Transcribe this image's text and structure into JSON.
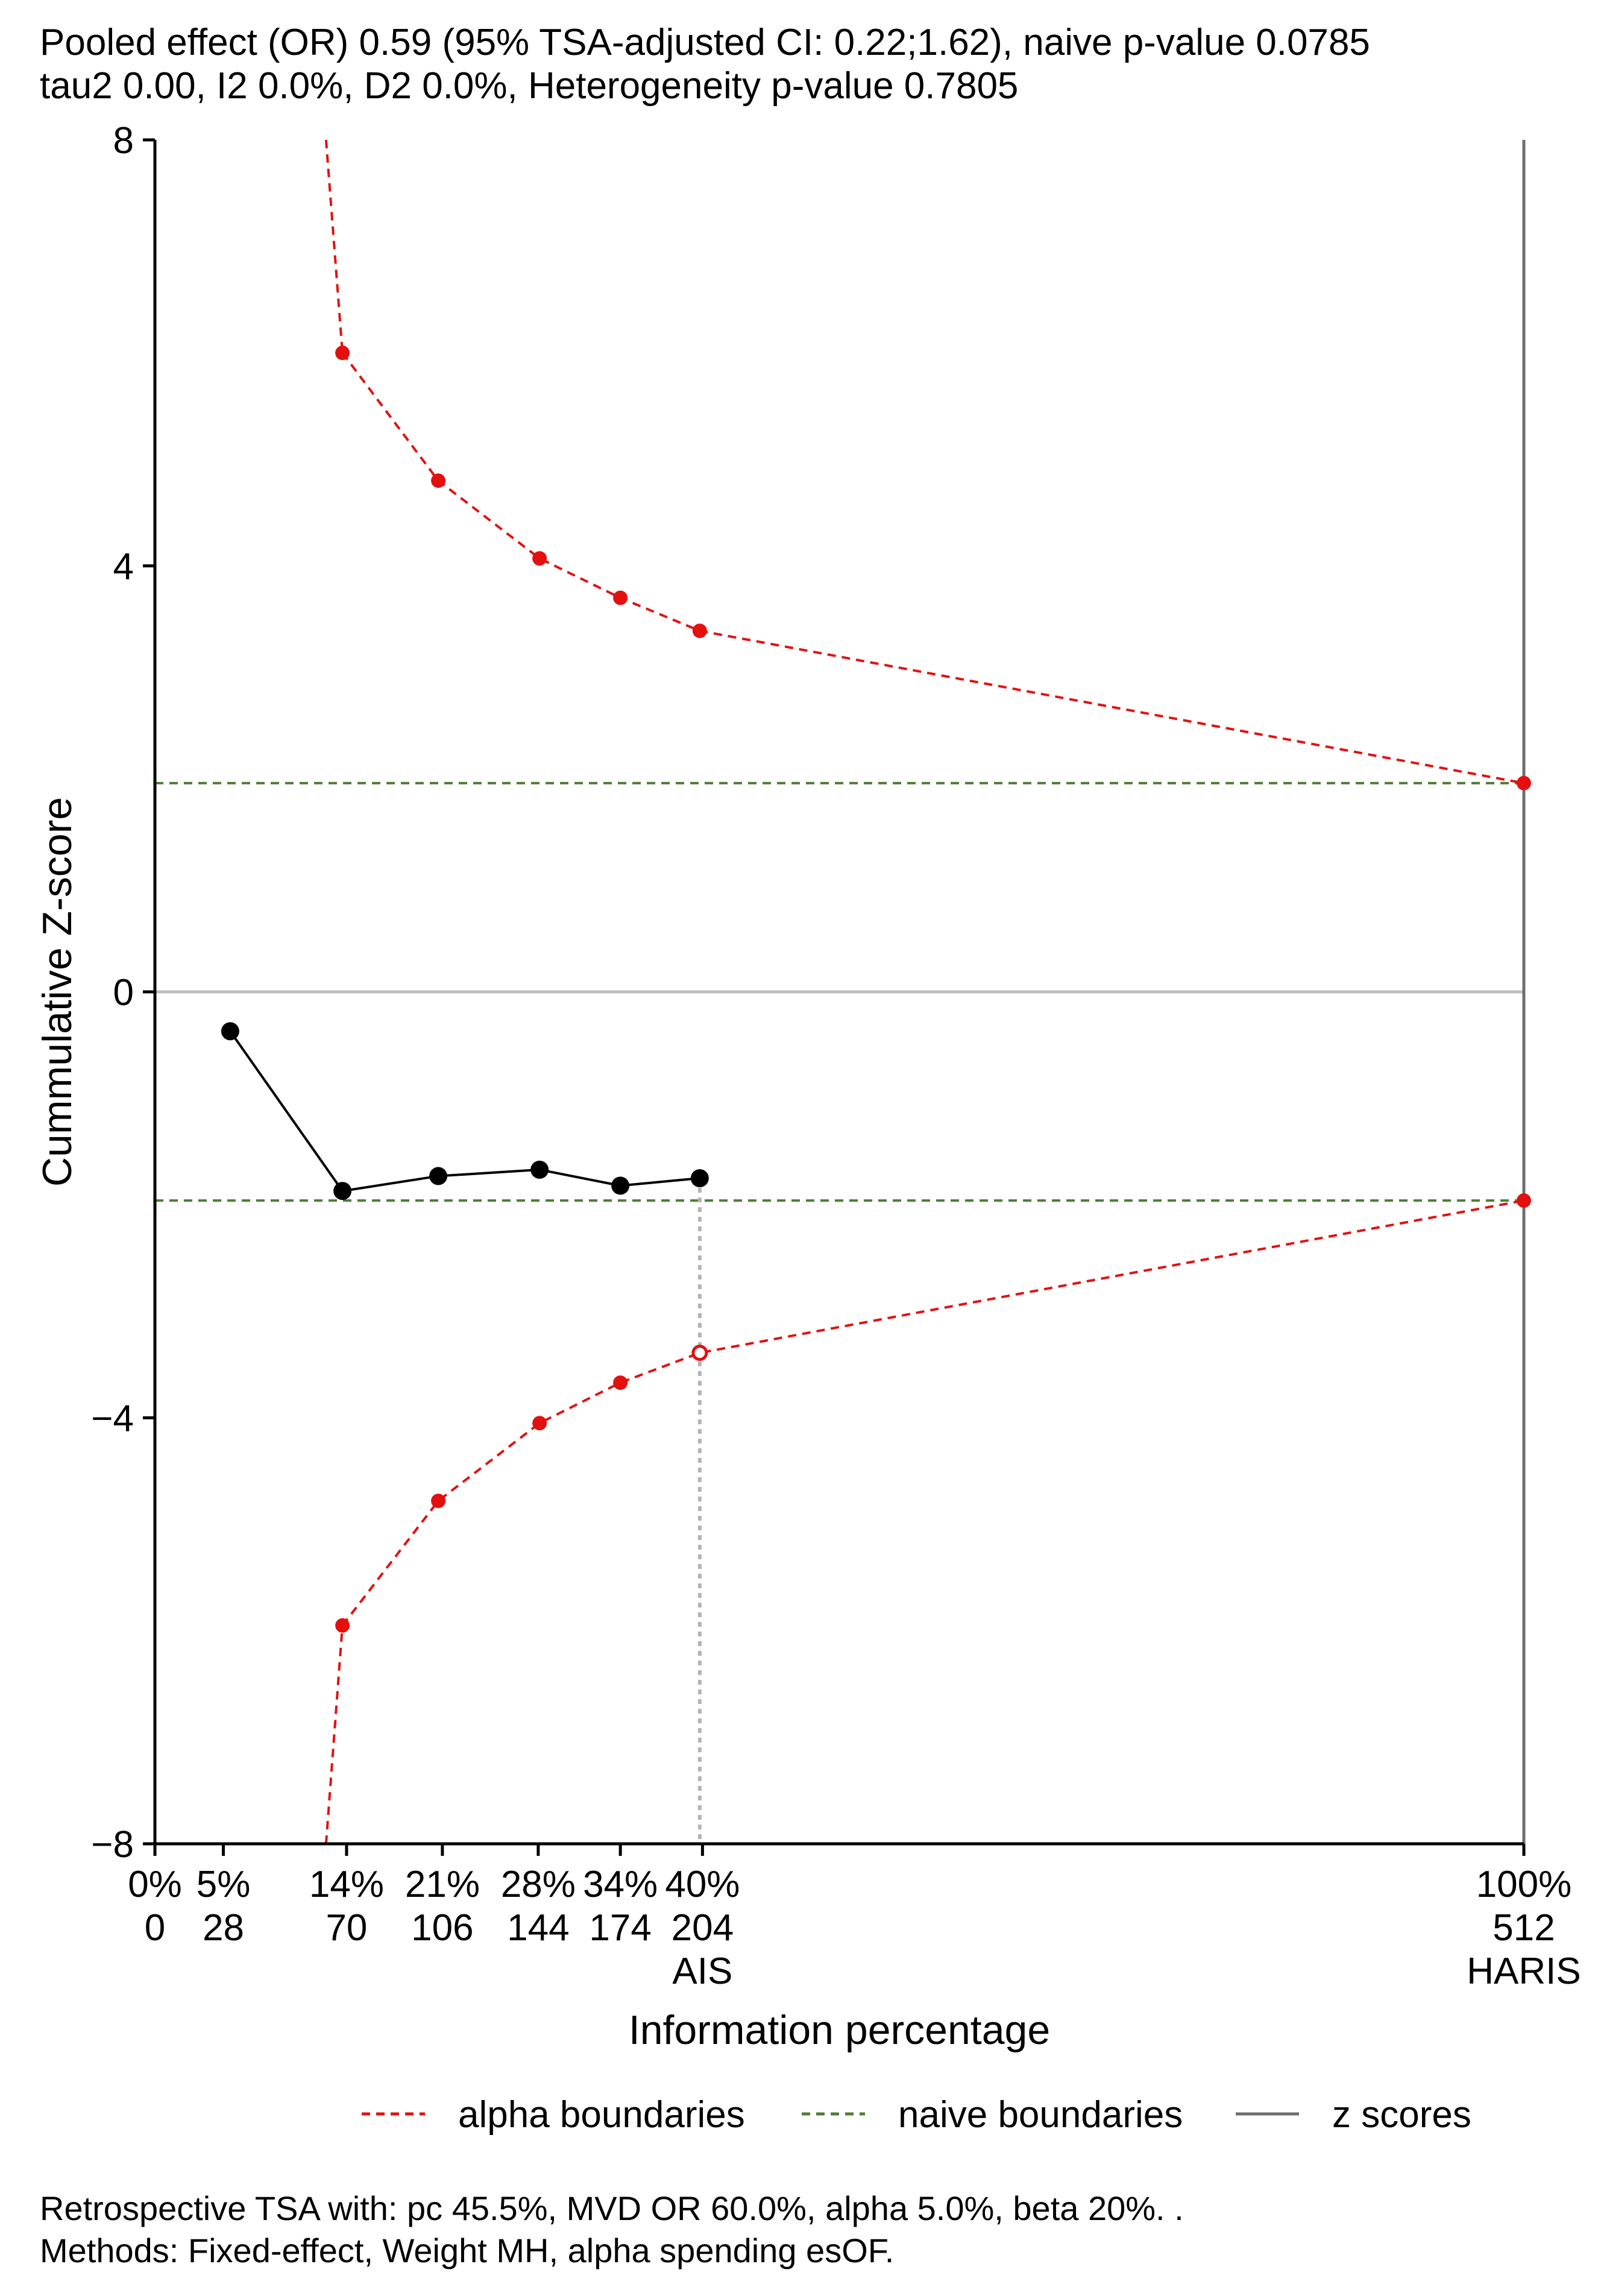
{
  "header": {
    "line1": "Pooled effect (OR) 0.59 (95% TSA-adjusted CI: 0.22;1.62), naive p-value 0.0785",
    "line2": "tau2 0.00, I2 0.0%, D2 0.0%, Heterogeneity p-value 0.7805"
  },
  "footer": {
    "line1": "Retrospective TSA with: pc 45.5%, MVD OR 60.0%, alpha 5.0%, beta 20%. .",
    "line2": "Methods: Fixed-effect, Weight MH, alpha spending esOF."
  },
  "colors": {
    "alpha": "#e3100f",
    "naive": "#4e7d35",
    "z": "#000000",
    "axis": "#000000",
    "zero_line": "#bdbdbd",
    "ris_line": "#6e6e6e",
    "ais_line": "#b3b3b3"
  },
  "chart_data": {
    "type": "line",
    "ylabel": "Cummulative Z-score",
    "xlabel": "Information percentage",
    "xlim": [
      0,
      100
    ],
    "ylim": [
      -8,
      8
    ],
    "y_ticks": [
      8,
      4,
      0,
      -4,
      -8
    ],
    "y_tick_labels": [
      "8",
      "4",
      "0",
      "−4",
      "−8"
    ],
    "x_ticks": [
      {
        "pct": 0,
        "pct_label": "0%",
        "n_label": "0",
        "tag": ""
      },
      {
        "pct": 5,
        "pct_label": "5%",
        "n_label": "28",
        "tag": ""
      },
      {
        "pct": 14,
        "pct_label": "14%",
        "n_label": "70",
        "tag": ""
      },
      {
        "pct": 21,
        "pct_label": "21%",
        "n_label": "106",
        "tag": ""
      },
      {
        "pct": 28,
        "pct_label": "28%",
        "n_label": "144",
        "tag": ""
      },
      {
        "pct": 34,
        "pct_label": "34%",
        "n_label": "174",
        "tag": ""
      },
      {
        "pct": 40,
        "pct_label": "40%",
        "n_label": "204",
        "tag": "AIS"
      },
      {
        "pct": 100,
        "pct_label": "100%",
        "n_label": "512",
        "tag": "HARIS"
      }
    ],
    "z_scores": {
      "name": "z scores",
      "x": [
        5.5,
        13.7,
        20.7,
        28.1,
        34.0,
        39.8
      ],
      "y": [
        -0.37,
        -1.87,
        -1.73,
        -1.67,
        -1.82,
        -1.75
      ]
    },
    "alpha_upper": {
      "name": "alpha boundaries",
      "curve_x": [
        12.5,
        13.7
      ],
      "curve_y": [
        8.0,
        6.0
      ],
      "x": [
        13.7,
        20.7,
        28.1,
        34.0,
        39.8,
        100
      ],
      "y": [
        6.0,
        4.8,
        4.07,
        3.7,
        3.39,
        1.96
      ]
    },
    "alpha_lower": {
      "name": "alpha boundaries",
      "curve_x": [
        12.5,
        13.7
      ],
      "curve_y": [
        -8.0,
        -5.95
      ],
      "x": [
        13.7,
        20.7,
        28.1,
        34.0,
        39.8,
        100
      ],
      "y": [
        -5.95,
        -4.78,
        -4.05,
        -3.67,
        -3.39,
        -1.96
      ],
      "open_marker_index": 4
    },
    "naive_boundaries": {
      "name": "naive boundaries",
      "values": [
        1.96,
        -1.96
      ]
    },
    "ais": {
      "x": 39.8,
      "label": "AIS"
    },
    "ris": {
      "x": 100,
      "label": "HARIS"
    },
    "legend": [
      {
        "label": "alpha boundaries",
        "style": "dashed",
        "color_key": "alpha"
      },
      {
        "label": "naive boundaries",
        "style": "dashed",
        "color_key": "naive"
      },
      {
        "label": "z scores",
        "style": "solid",
        "color_key": "ris_line"
      }
    ],
    "legend_position": "bottom"
  }
}
